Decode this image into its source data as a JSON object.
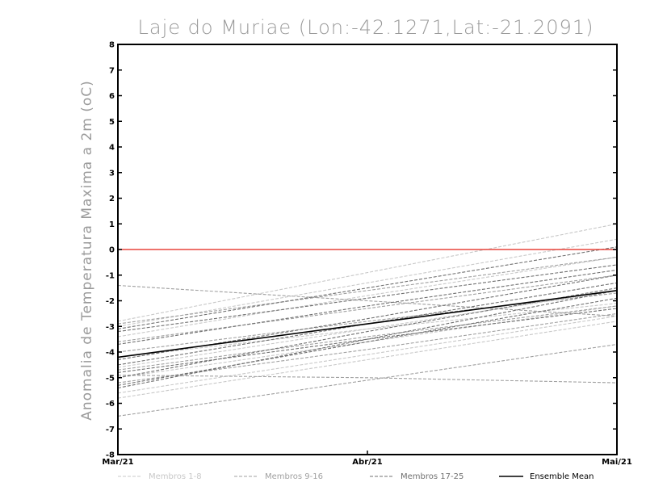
{
  "chart_data": {
    "type": "line",
    "title": "Laje do Muriae (Lon:-42.1271,Lat:-21.2091)",
    "ylabel": "Anomalia de Temperatura Maxima a 2m (oC)",
    "xlabel": "",
    "categories": [
      "Mar/21",
      "Abr/21",
      "Mai/21"
    ],
    "ylim": [
      -8,
      8
    ],
    "yticks": [
      -8,
      -7,
      -6,
      -5,
      -4,
      -3,
      -2,
      -1,
      0,
      1,
      2,
      3,
      4,
      5,
      6,
      7,
      8
    ],
    "reference_line": {
      "value": 0,
      "color": "#e8453c"
    },
    "colors": {
      "membros_1_8": "#c8c8c8",
      "membros_9_16": "#a0a0a0",
      "membros_17_25": "#707070",
      "ensemble_mean": "#000000"
    },
    "legend": [
      {
        "key": "membros_1_8",
        "label": "Membros 1-8"
      },
      {
        "key": "membros_9_16",
        "label": "Membros 9-16"
      },
      {
        "key": "membros_17_25",
        "label": "Membros 17-25"
      },
      {
        "key": "ensemble_mean",
        "label": "Ensemble Mean"
      }
    ],
    "series": [
      {
        "name": "Membro 1",
        "group": "membros_1_8",
        "values": [
          -2.8,
          -0.9,
          1.0
        ]
      },
      {
        "name": "Membro 2",
        "group": "membros_1_8",
        "values": [
          -3.0,
          -1.3,
          0.4
        ]
      },
      {
        "name": "Membro 3",
        "group": "membros_1_8",
        "values": [
          -3.4,
          -1.8,
          -0.3
        ]
      },
      {
        "name": "Membro 4",
        "group": "membros_1_8",
        "values": [
          -4.6,
          -3.1,
          -1.6
        ]
      },
      {
        "name": "Membro 5",
        "group": "membros_1_8",
        "values": [
          -5.0,
          -3.6,
          -2.2
        ]
      },
      {
        "name": "Membro 6",
        "group": "membros_1_8",
        "values": [
          -5.6,
          -4.1,
          -2.6
        ]
      },
      {
        "name": "Membro 7",
        "group": "membros_1_8",
        "values": [
          -5.8,
          -4.3,
          -2.8
        ]
      },
      {
        "name": "Membro 8",
        "group": "membros_1_8",
        "values": [
          -4.2,
          -3.1,
          -2.1
        ]
      },
      {
        "name": "Membro 9",
        "group": "membros_9_16",
        "values": [
          -1.4,
          -2.0,
          -2.6
        ]
      },
      {
        "name": "Membro 10",
        "group": "membros_9_16",
        "values": [
          -2.9,
          -1.6,
          -0.3
        ]
      },
      {
        "name": "Membro 11",
        "group": "membros_9_16",
        "values": [
          -3.6,
          -2.3,
          -1.0
        ]
      },
      {
        "name": "Membro 12",
        "group": "membros_9_16",
        "values": [
          -4.0,
          -2.8,
          -1.7
        ]
      },
      {
        "name": "Membro 13",
        "group": "membros_9_16",
        "values": [
          -4.7,
          -3.4,
          -2.2
        ]
      },
      {
        "name": "Membro 14",
        "group": "membros_9_16",
        "values": [
          -5.2,
          -3.9,
          -2.5
        ]
      },
      {
        "name": "Membro 15",
        "group": "membros_9_16",
        "values": [
          -6.5,
          -5.1,
          -3.7
        ]
      },
      {
        "name": "Membro 16",
        "group": "membros_9_16",
        "values": [
          -4.9,
          -5.0,
          -5.2
        ]
      },
      {
        "name": "Membro 17",
        "group": "membros_17_25",
        "values": [
          -3.1,
          -1.5,
          0.1
        ]
      },
      {
        "name": "Membro 18",
        "group": "membros_17_25",
        "values": [
          -3.2,
          -1.9,
          -0.6
        ]
      },
      {
        "name": "Membro 19",
        "group": "membros_17_25",
        "values": [
          -3.7,
          -2.2,
          -0.8
        ]
      },
      {
        "name": "Membro 20",
        "group": "membros_17_25",
        "values": [
          -4.3,
          -2.7,
          -1.0
        ]
      },
      {
        "name": "Membro 21",
        "group": "membros_17_25",
        "values": [
          -4.5,
          -2.9,
          -1.3
        ]
      },
      {
        "name": "Membro 22",
        "group": "membros_17_25",
        "values": [
          -5.0,
          -3.2,
          -1.5
        ]
      },
      {
        "name": "Membro 23",
        "group": "membros_17_25",
        "values": [
          -5.3,
          -3.6,
          -1.9
        ]
      },
      {
        "name": "Membro 24",
        "group": "membros_17_25",
        "values": [
          -4.8,
          -3.5,
          -2.3
        ]
      },
      {
        "name": "Membro 25",
        "group": "membros_17_25",
        "values": [
          -5.4,
          -3.5,
          -1.6
        ]
      },
      {
        "name": "Ensemble Mean",
        "group": "ensemble_mean",
        "values": [
          -4.2,
          -2.9,
          -1.6
        ]
      }
    ]
  }
}
